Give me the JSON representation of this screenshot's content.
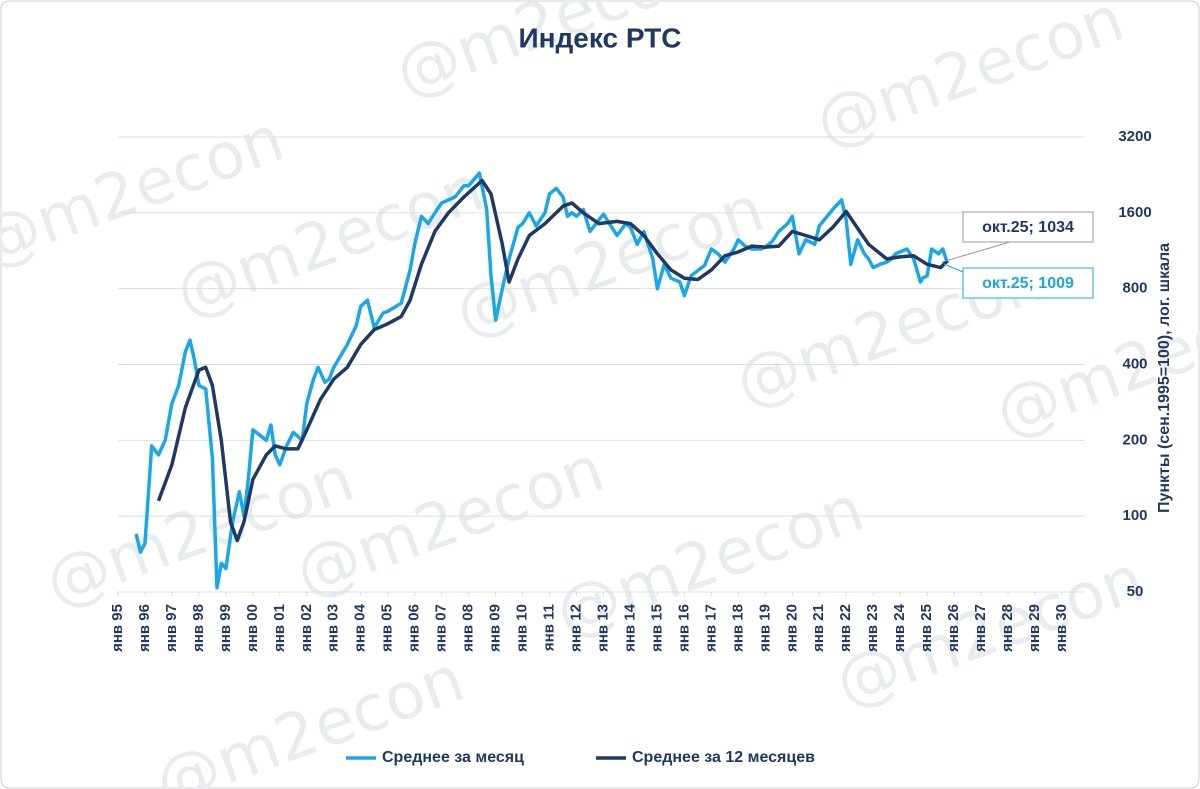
{
  "watermark": "@m2econ",
  "chart_data": {
    "type": "line",
    "title": "Индекс РТС",
    "y_label": "Пункты (сен.1995=100), лог. шкала",
    "yscale": "log",
    "grid": true,
    "legend": "bottom",
    "xlim": [
      1995,
      2030
    ],
    "xticks": [
      {
        "value": 1995,
        "label": "янв 95"
      },
      {
        "value": 1996,
        "label": "янв 96"
      },
      {
        "value": 1997,
        "label": "янв 97"
      },
      {
        "value": 1998,
        "label": "янв 98"
      },
      {
        "value": 1999,
        "label": "янв 99"
      },
      {
        "value": 2000,
        "label": "янв 00"
      },
      {
        "value": 2001,
        "label": "янв 01"
      },
      {
        "value": 2002,
        "label": "янв 02"
      },
      {
        "value": 2003,
        "label": "янв 03"
      },
      {
        "value": 2004,
        "label": "янв 04"
      },
      {
        "value": 2005,
        "label": "янв 05"
      },
      {
        "value": 2006,
        "label": "янв 06"
      },
      {
        "value": 2007,
        "label": "янв 07"
      },
      {
        "value": 2008,
        "label": "янв 08"
      },
      {
        "value": 2009,
        "label": "янв 09"
      },
      {
        "value": 2010,
        "label": "янв 10"
      },
      {
        "value": 2011,
        "label": "янв 11"
      },
      {
        "value": 2012,
        "label": "янв 12"
      },
      {
        "value": 2013,
        "label": "янв 13"
      },
      {
        "value": 2014,
        "label": "янв 14"
      },
      {
        "value": 2015,
        "label": "янв 15"
      },
      {
        "value": 2016,
        "label": "янв 16"
      },
      {
        "value": 2017,
        "label": "янв 17"
      },
      {
        "value": 2018,
        "label": "янв 18"
      },
      {
        "value": 2019,
        "label": "янв 19"
      },
      {
        "value": 2020,
        "label": "янв 20"
      },
      {
        "value": 2021,
        "label": "янв 21"
      },
      {
        "value": 2022,
        "label": "янв 22"
      },
      {
        "value": 2023,
        "label": "янв 23"
      },
      {
        "value": 2024,
        "label": "янв 24"
      },
      {
        "value": 2025,
        "label": "янв 25"
      },
      {
        "value": 2026,
        "label": "янв 26"
      },
      {
        "value": 2027,
        "label": "янв 27"
      },
      {
        "value": 2028,
        "label": "янв 28"
      },
      {
        "value": 2029,
        "label": "янв 29"
      },
      {
        "value": 2030,
        "label": "янв 30"
      }
    ],
    "ylim": [
      50,
      3200
    ],
    "yticks": [
      50,
      100,
      200,
      400,
      800,
      1600,
      3200
    ],
    "series": [
      {
        "name": "Среднее за месяц",
        "color": "#1aa7e8",
        "x": [
          1995.67,
          1995.83,
          1996,
          1996.25,
          1996.5,
          1996.75,
          1997,
          1997.25,
          1997.5,
          1997.67,
          1997.83,
          1998,
          1998.25,
          1998.5,
          1998.67,
          1998.83,
          1999,
          1999.25,
          1999.5,
          1999.67,
          1999.83,
          2000,
          2000.25,
          2000.5,
          2000.67,
          2000.83,
          2001,
          2001.25,
          2001.5,
          2001.83,
          2002,
          2002.25,
          2002.42,
          2002.67,
          2002.83,
          2003,
          2003.5,
          2003.83,
          2004,
          2004.25,
          2004.5,
          2004.83,
          2005,
          2005.5,
          2005.83,
          2006,
          2006.25,
          2006.5,
          2006.83,
          2007,
          2007.5,
          2007.83,
          2008,
          2008.4,
          2008.67,
          2008.83,
          2009,
          2009.25,
          2009.5,
          2009.83,
          2010,
          2010.25,
          2010.5,
          2010.83,
          2011,
          2011.25,
          2011.5,
          2011.67,
          2011.83,
          2012,
          2012.25,
          2012.5,
          2012.83,
          2013,
          2013.5,
          2013.83,
          2014,
          2014.25,
          2014.5,
          2014.83,
          2015,
          2015.25,
          2015.5,
          2015.83,
          2016,
          2016.25,
          2016.75,
          2017,
          2017.25,
          2017.5,
          2017.83,
          2018,
          2018.25,
          2018.5,
          2018.83,
          2019,
          2019.25,
          2019.5,
          2019.83,
          2020,
          2020.25,
          2020.5,
          2020.83,
          2021,
          2021.5,
          2021.83,
          2022,
          2022.17,
          2022.42,
          2022.67,
          2022.83,
          2023,
          2023.25,
          2023.5,
          2023.67,
          2023.83,
          2024,
          2024.25,
          2024.5,
          2024.75,
          2024.83,
          2025,
          2025.17,
          2025.42,
          2025.58,
          2025.75
        ],
        "values": [
          85,
          72,
          78,
          190,
          175,
          200,
          280,
          330,
          450,
          500,
          420,
          330,
          320,
          170,
          52,
          65,
          62,
          95,
          125,
          100,
          140,
          220,
          210,
          200,
          230,
          175,
          160,
          190,
          215,
          200,
          280,
          350,
          390,
          340,
          350,
          390,
          480,
          570,
          680,
          720,
          560,
          640,
          650,
          700,
          950,
          1200,
          1550,
          1450,
          1650,
          1750,
          1850,
          2050,
          2050,
          2300,
          1650,
          900,
          600,
          800,
          1050,
          1400,
          1450,
          1600,
          1420,
          1600,
          1900,
          2000,
          1850,
          1550,
          1600,
          1550,
          1650,
          1350,
          1500,
          1580,
          1300,
          1450,
          1400,
          1200,
          1350,
          1050,
          800,
          1000,
          880,
          850,
          750,
          900,
          990,
          1150,
          1100,
          1020,
          1150,
          1250,
          1180,
          1150,
          1150,
          1170,
          1230,
          1350,
          1450,
          1550,
          1100,
          1250,
          1200,
          1420,
          1650,
          1800,
          1500,
          1000,
          1250,
          1100,
          1050,
          970,
          1000,
          1020,
          1050,
          1100,
          1120,
          1150,
          1050,
          850,
          880,
          900,
          1150,
          1100,
          1150,
          1009
        ]
      },
      {
        "name": "Среднее за 12 месяцев",
        "color": "#1f3864",
        "x": [
          1996.5,
          1997,
          1997.5,
          1998,
          1998.25,
          1998.5,
          1998.83,
          1999.17,
          1999.42,
          1999.67,
          2000,
          2000.5,
          2000.83,
          2001.25,
          2001.67,
          2002,
          2002.5,
          2003,
          2003.5,
          2004,
          2004.5,
          2005,
          2005.5,
          2005.83,
          2006.25,
          2006.75,
          2007.25,
          2007.83,
          2008.5,
          2008.83,
          2009.25,
          2009.5,
          2009.83,
          2010.25,
          2010.83,
          2011.5,
          2011.83,
          2012.25,
          2012.83,
          2013.5,
          2014,
          2014.5,
          2015,
          2015.5,
          2016,
          2016.5,
          2017,
          2017.5,
          2018,
          2018.5,
          2019,
          2019.5,
          2020,
          2020.5,
          2021,
          2021.5,
          2022,
          2022.5,
          2022.83,
          2023.5,
          2024,
          2024.5,
          2025,
          2025.5,
          2025.75
        ],
        "values": [
          115,
          160,
          270,
          380,
          390,
          330,
          200,
          95,
          80,
          95,
          140,
          175,
          190,
          185,
          185,
          220,
          290,
          350,
          390,
          480,
          550,
          580,
          620,
          720,
          1000,
          1350,
          1600,
          1850,
          2150,
          1900,
          1200,
          850,
          1050,
          1300,
          1450,
          1700,
          1750,
          1600,
          1450,
          1480,
          1450,
          1300,
          1100,
          950,
          880,
          870,
          950,
          1080,
          1120,
          1180,
          1170,
          1180,
          1350,
          1300,
          1250,
          1400,
          1620,
          1350,
          1200,
          1050,
          1070,
          1080,
          1000,
          970,
          1034
        ]
      }
    ],
    "annotations": [
      "окт.25; 1034",
      "окт.25; 1009"
    ]
  }
}
